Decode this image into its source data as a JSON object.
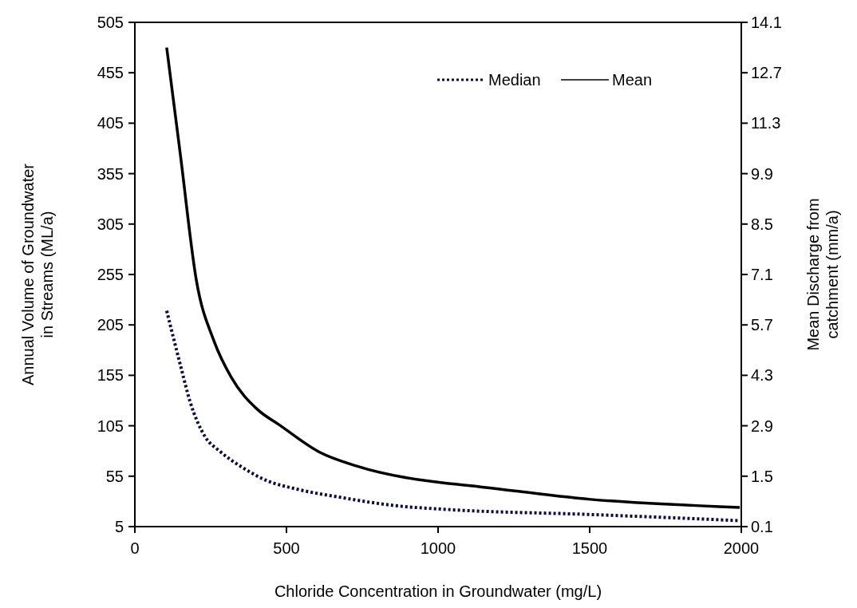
{
  "chart_data": {
    "type": "line",
    "xlabel": "Chloride Concentration in Groundwater (mg/L)",
    "ylabel": "Annual Volume of Groundwater\nin Streams (ML/a)",
    "y2label": "Mean Discharge from\ncatchment (mm/a)",
    "xlim": [
      0,
      2000
    ],
    "xticks": [
      0,
      500,
      1000,
      1500,
      2000
    ],
    "ylim": [
      5,
      505
    ],
    "yticks": [
      5,
      55,
      105,
      155,
      205,
      255,
      305,
      355,
      405,
      455,
      505
    ],
    "y2lim": [
      0.1,
      14.1
    ],
    "y2ticks": [
      0.1,
      1.5,
      2.9,
      4.3,
      5.7,
      7.1,
      8.5,
      9.9,
      11.3,
      12.7,
      14.1
    ],
    "legend": "top right",
    "grid": false,
    "series": [
      {
        "name": "Median",
        "color": "#0a0a40",
        "line_style": "dotted",
        "x": [
          105,
          152,
          182,
          232,
          279,
          353,
          432,
          537,
          678,
          853,
          1029,
          1503,
          1989
        ],
        "values": [
          219,
          163,
          129,
          94,
          80,
          64,
          51,
          42,
          34,
          26,
          22,
          17,
          11
        ]
      },
      {
        "name": "Mean",
        "color": "#000000",
        "line_style": "solid",
        "x": [
          105,
          150,
          203,
          261,
          318,
          405,
          476,
          608,
          732,
          1029,
          1063,
          1503,
          1995
        ],
        "values": [
          480,
          374,
          249,
          189,
          153,
          121,
          106,
          79,
          65,
          48,
          47,
          32,
          24
        ]
      }
    ]
  }
}
